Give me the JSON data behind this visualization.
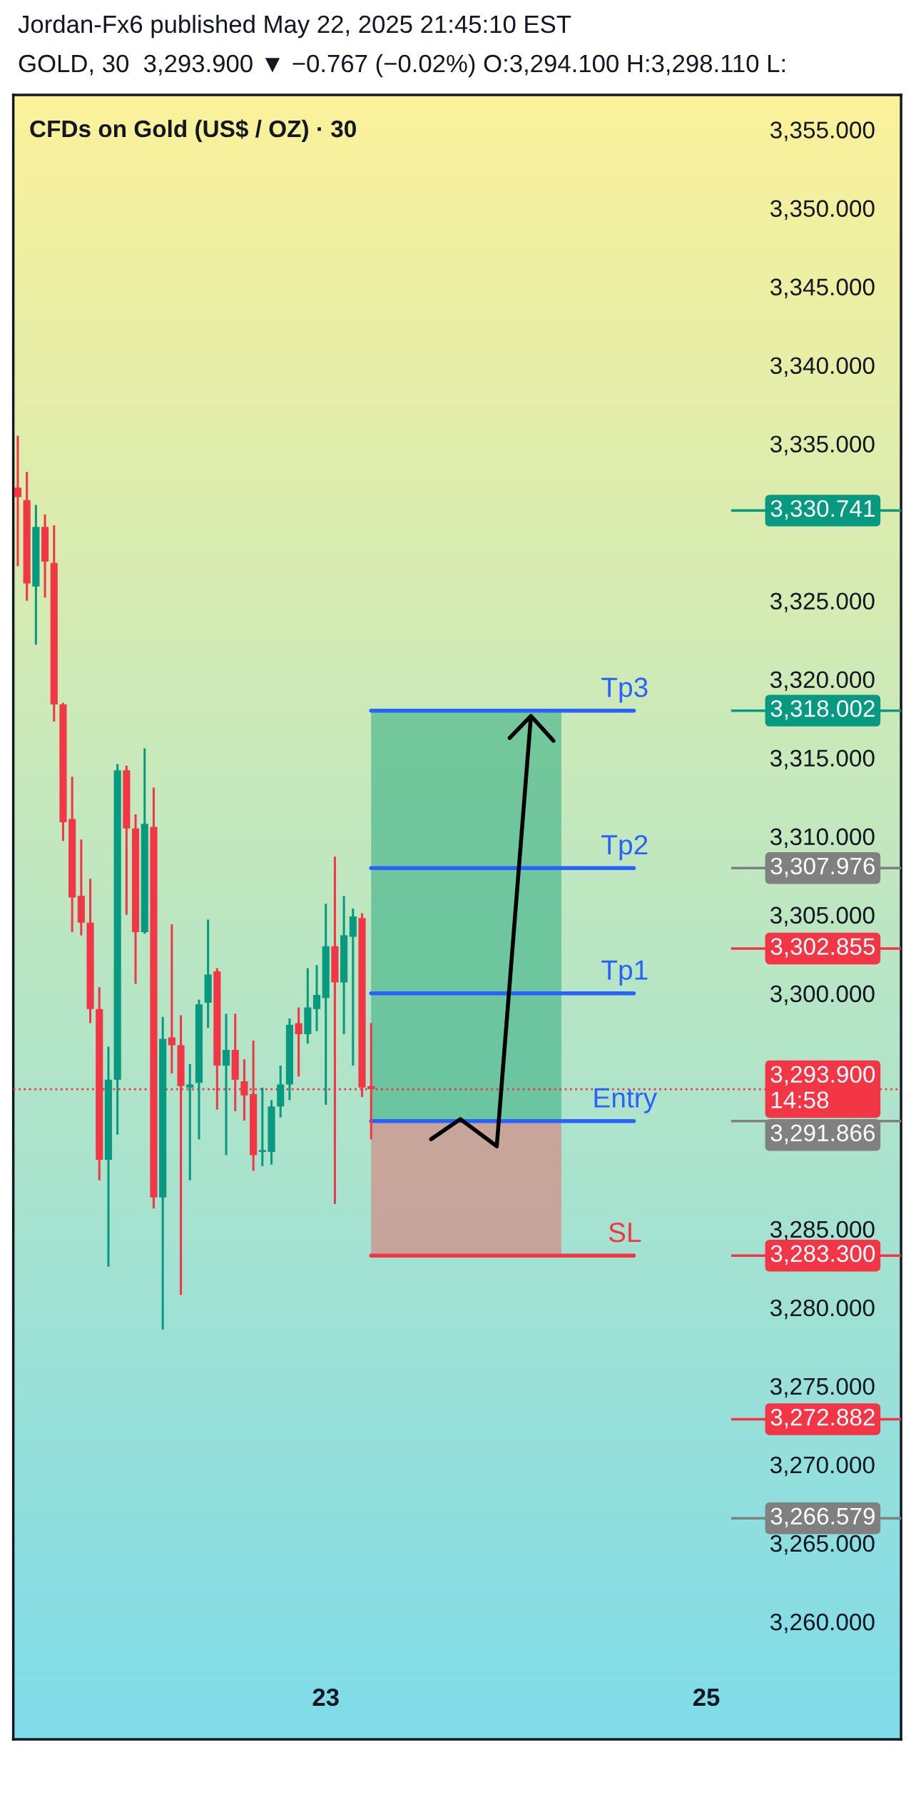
{
  "chart_data": {
    "type": "candlestick",
    "title": "CFDs on Gold (US$ / OZ) · 30",
    "annotations": [
      "Jordan-Fx6 published May 22, 2025 21:45:10 EST",
      "GOLD, 30  3,293.900 ▼ −0.767 (−0.02%) O:3,294.100 H:3,298.110 L:",
      {
        "text": "Tp3",
        "y": 3318.002
      },
      {
        "text": "Tp2",
        "y": 3307.976
      },
      {
        "text": "Tp1",
        "y": 3300
      },
      {
        "text": "Entry",
        "y": 3291.866
      },
      {
        "text": "SL",
        "y": 3283.3
      }
    ],
    "categories": [
      null,
      null,
      null,
      null,
      null,
      null,
      null,
      null,
      null,
      null,
      null,
      null,
      null,
      null,
      null,
      null,
      null,
      null,
      null,
      null,
      null,
      null,
      null,
      null,
      null,
      null,
      null,
      null,
      null,
      null,
      null,
      null,
      null,
      null,
      "23",
      null,
      null,
      null,
      null,
      null,
      null,
      null,
      null,
      null,
      null,
      null,
      null,
      null,
      null,
      null,
      null,
      null,
      null,
      null,
      null,
      null,
      null,
      null,
      null,
      null,
      null,
      null,
      null,
      null,
      null,
      null,
      null,
      null,
      null,
      null,
      null,
      null,
      null,
      null,
      null,
      null,
      "25",
      null,
      null,
      null,
      null,
      null,
      null,
      null,
      null,
      null,
      null,
      null,
      null,
      null,
      null,
      null,
      null,
      null,
      null,
      null,
      null,
      null
    ],
    "ohlc": [
      [
        3332.2,
        3335.5,
        3327.2,
        3331.6
      ],
      [
        3331.4,
        3333.2,
        3325.0,
        3326.1
      ],
      [
        3325.9,
        3331.1,
        3322.2,
        3329.7
      ],
      [
        3329.7,
        3330.5,
        3325.2,
        3327.5
      ],
      [
        3327.4,
        3329.8,
        3317.3,
        3318.4
      ],
      [
        3318.4,
        3318.5,
        3309.7,
        3310.9
      ],
      [
        3311.1,
        3313.8,
        3303.9,
        3306.1
      ],
      [
        3306.2,
        3309.8,
        3303.7,
        3304.5
      ],
      [
        3304.5,
        3307.3,
        3298.1,
        3299.0
      ],
      [
        3299.0,
        3300.4,
        3288.1,
        3289.4
      ],
      [
        3289.4,
        3296.6,
        3282.6,
        3294.5
      ],
      [
        3294.5,
        3314.6,
        3291.0,
        3314.2
      ],
      [
        3314.2,
        3314.5,
        3305.0,
        3310.5
      ],
      [
        3310.5,
        3311.4,
        3300.6,
        3303.9
      ],
      [
        3303.9,
        3315.6,
        3303.8,
        3310.8
      ],
      [
        3310.6,
        3313.1,
        3286.3,
        3287.0
      ],
      [
        3287.0,
        3298.5,
        3278.6,
        3297.1
      ],
      [
        3297.2,
        3304.4,
        3294.9,
        3296.7
      ],
      [
        3296.7,
        3298.6,
        3280.8,
        3294.1
      ],
      [
        3294.0,
        3295.5,
        3288.1,
        3294.2
      ],
      [
        3294.3,
        3299.6,
        3290.7,
        3299.3
      ],
      [
        3299.4,
        3304.7,
        3297.8,
        3301.2
      ],
      [
        3301.4,
        3301.6,
        3292.6,
        3295.4
      ],
      [
        3295.4,
        3298.7,
        3289.7,
        3296.4
      ],
      [
        3296.4,
        3298.7,
        3292.5,
        3294.5
      ],
      [
        3294.4,
        3295.8,
        3291.9,
        3293.5
      ],
      [
        3293.6,
        3297.0,
        3288.7,
        3289.7
      ],
      [
        3289.9,
        3294.0,
        3289.0,
        3290.0
      ],
      [
        3289.9,
        3293.2,
        3289.1,
        3292.8
      ],
      [
        3292.8,
        3295.4,
        3292.1,
        3294.2
      ],
      [
        3294.2,
        3298.4,
        3293.2,
        3298.0
      ],
      [
        3298.1,
        3299.1,
        3294.7,
        3297.4
      ],
      [
        3297.4,
        3301.6,
        3296.8,
        3299.1
      ],
      [
        3299.0,
        3301.8,
        3297.6,
        3299.9
      ],
      [
        3299.7,
        3305.7,
        3292.9,
        3303.0
      ],
      [
        3303.0,
        3308.7,
        3286.6,
        3300.7
      ],
      [
        3300.7,
        3306.2,
        3297.4,
        3303.7
      ],
      [
        3303.6,
        3305.4,
        3295.4,
        3304.9
      ],
      [
        3304.8,
        3305.1,
        3293.4,
        3294.0
      ],
      [
        3294.1,
        3298.11,
        3290.7,
        3293.9
      ],
      null,
      null,
      null,
      null,
      null,
      null,
      null,
      null,
      null,
      null,
      null,
      null,
      null,
      null,
      null,
      null,
      null,
      null,
      null,
      null,
      null,
      null,
      null,
      null,
      null,
      null,
      null,
      null,
      null,
      null,
      null,
      null,
      null,
      null,
      null,
      null,
      null,
      null,
      null,
      null,
      null,
      null,
      null,
      null,
      null,
      null,
      null,
      null,
      null,
      null,
      null,
      null,
      null,
      null,
      null,
      null,
      null,
      null
    ],
    "colors": [
      "#f23645",
      "#f23645",
      "#089981",
      "#f23645",
      "#f23645",
      "#f23645",
      "#f23645",
      "#f23645",
      "#f23645",
      "#f23645",
      "#089981",
      "#089981",
      "#f23645",
      "#f23645",
      "#089981",
      "#f23645",
      "#089981",
      "#f23645",
      "#f23645",
      "#089981",
      "#089981",
      "#089981",
      "#f23645",
      "#089981",
      "#f23645",
      "#f23645",
      "#f23645",
      "#089981",
      "#089981",
      "#089981",
      "#089981",
      "#f23645",
      "#089981",
      "#089981",
      "#089981",
      "#f23645",
      "#089981",
      "#089981",
      "#f23645",
      "#f23645",
      null,
      null,
      null,
      null,
      null,
      null,
      null,
      null,
      null,
      null,
      null,
      null,
      null,
      null,
      null,
      null,
      null,
      null,
      null,
      null,
      null,
      null,
      null,
      null,
      null,
      null,
      null,
      null,
      null,
      null,
      null,
      null,
      null,
      null,
      null,
      null,
      null,
      null,
      null,
      null,
      null,
      null,
      null,
      null,
      null,
      null,
      null,
      null,
      null,
      null,
      null,
      null,
      null,
      null,
      null,
      null,
      null,
      null
    ],
    "ylim": [
      3252.5,
      3357.2
    ],
    "yticks": [
      {
        "value": 3260,
        "label": "3,260.000"
      },
      {
        "value": 3265,
        "label": "3,265.000"
      },
      {
        "value": 3270,
        "label": "3,270.000"
      },
      {
        "value": 3275,
        "label": "3,275.000"
      },
      {
        "value": 3280,
        "label": "3,280.000"
      },
      {
        "value": 3285,
        "label": "3,285.000"
      },
      {
        "value": 3300,
        "label": "3,300.000"
      },
      {
        "value": 3305,
        "label": "3,305.000"
      },
      {
        "value": 3310,
        "label": "3,310.000"
      },
      {
        "value": 3315,
        "label": "3,315.000"
      },
      {
        "value": 3320,
        "label": "3,320.000"
      },
      {
        "value": 3325,
        "label": "3,325.000"
      },
      {
        "value": 3335,
        "label": "3,335.000"
      },
      {
        "value": 3340,
        "label": "3,340.000"
      },
      {
        "value": 3345,
        "label": "3,345.000"
      },
      {
        "value": 3350,
        "label": "3,350.000"
      },
      {
        "value": 3355,
        "label": "3,355.000"
      }
    ],
    "bands": [
      {
        "axis": "y",
        "from": 3291.866,
        "to": 3318.002,
        "color": "#4db88f"
      },
      {
        "axis": "y",
        "from": 3283.3,
        "to": 3291.866,
        "color": "#d48a86"
      }
    ],
    "ref_lines": [
      {
        "axis": "y",
        "value": 3318.002,
        "color": "#2962ff",
        "line_style": "solid"
      },
      {
        "axis": "y",
        "value": 3307.976,
        "color": "#2962ff",
        "line_style": "solid"
      },
      {
        "axis": "y",
        "value": 3300,
        "color": "#2962ff",
        "line_style": "solid"
      },
      {
        "axis": "y",
        "value": 3291.866,
        "color": "#2962ff",
        "line_style": "solid"
      },
      {
        "axis": "y",
        "value": 3283.3,
        "color": "#f23645",
        "line_style": "solid"
      },
      {
        "axis": "y",
        "value": 3293.9,
        "label": "3,293.900\n14:58",
        "color": "#f23645",
        "line_style": "dotted"
      },
      {
        "axis": "y",
        "value": 3330.741,
        "label": "3,330.741",
        "color": "#089981",
        "line_style": "solid"
      },
      {
        "axis": "y",
        "value": 3318.002,
        "label": "3,318.002",
        "color": "#089981",
        "line_style": "solid"
      },
      {
        "axis": "y",
        "value": 3307.976,
        "label": "3,307.976",
        "color": "#808080",
        "line_style": "solid"
      },
      {
        "axis": "y",
        "value": 3302.855,
        "label": "3,302.855",
        "color": "#f23645",
        "line_style": "solid"
      },
      {
        "axis": "y",
        "value": 3291.866,
        "label": "3,291.866",
        "color": "#808080",
        "line_style": "solid"
      },
      {
        "axis": "y",
        "value": 3283.3,
        "label": "3,283.300",
        "color": "#f23645",
        "line_style": "solid"
      },
      {
        "axis": "y",
        "value": 3272.882,
        "label": "3,272.882",
        "color": "#f23645",
        "line_style": "solid"
      },
      {
        "axis": "y",
        "value": 3266.579,
        "label": "3,266.579",
        "color": "#808080",
        "line_style": "solid"
      }
    ],
    "grid": false
  }
}
